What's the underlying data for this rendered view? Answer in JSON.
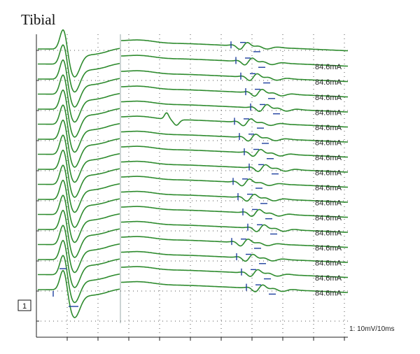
{
  "panel": {
    "title": "Tibial",
    "channel_box": "1",
    "scale": "1: 10mV/10ms"
  },
  "colors": {
    "trace": "#2e8b2e",
    "marker": "#1f3f9f",
    "grid": "#555555"
  },
  "traces": [
    {
      "label": ""
    },
    {
      "label": "84.6mA"
    },
    {
      "label": "84.6mA"
    },
    {
      "label": "84.6mA"
    },
    {
      "label": "84.6mA"
    },
    {
      "label": "84.6mA"
    },
    {
      "label": "84.6mA"
    },
    {
      "label": "84.6mA"
    },
    {
      "label": "84.6mA"
    },
    {
      "label": "84.6mA"
    },
    {
      "label": "84.6mA"
    },
    {
      "label": "84.6mA"
    },
    {
      "label": "84.6mA"
    },
    {
      "label": "84.6mA"
    },
    {
      "label": "84.6mA"
    },
    {
      "label": "84.6mA"
    },
    {
      "label": "84.6mA"
    }
  ]
}
